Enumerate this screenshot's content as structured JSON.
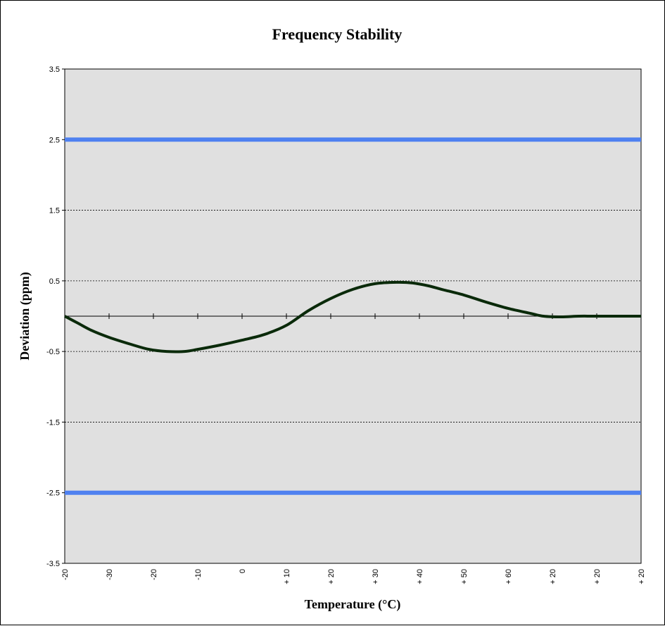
{
  "chart_data": {
    "type": "line",
    "title": "Frequency Stability",
    "xlabel": "Temperature (°C)",
    "ylabel": "Deviation (ppm)",
    "ylim": [
      -3.5,
      3.5
    ],
    "y_ticks": [
      "3.5",
      "2.5",
      "1.5",
      "0.5",
      "-0.5",
      "-1.5",
      "-2.5",
      "-3.5"
    ],
    "y_tick_values": [
      3.5,
      2.5,
      1.5,
      0.5,
      -0.5,
      -1.5,
      -2.5,
      -3.5
    ],
    "categories": [
      "-20",
      "-30",
      "-20",
      "-10",
      "0",
      "+ 10",
      "+ 20",
      "+ 30",
      "+ 40",
      "+ 50",
      "+ 60",
      "+ 20",
      "+ 20",
      "+ 20"
    ],
    "grid": true,
    "plot_background": "#e0e0e0",
    "limit_color": "#4f81f0",
    "curve_color": "#0a2a0a",
    "series": [
      {
        "x": [
          0,
          0.3,
          0.6,
          1.0,
          1.5,
          1.9,
          2.3,
          2.7,
          3.0,
          3.5,
          4.0,
          4.5,
          5.0,
          5.5,
          6.0,
          6.5,
          7.0,
          7.5,
          7.85,
          8.2,
          8.5,
          9.0,
          9.5,
          10.0,
          10.5,
          10.8,
          11.2,
          11.6,
          12.0,
          13.0
        ],
        "values": [
          0,
          -0.1,
          -0.2,
          -0.3,
          -0.4,
          -0.47,
          -0.5,
          -0.5,
          -0.47,
          -0.41,
          -0.34,
          -0.26,
          -0.13,
          0.08,
          0.25,
          0.38,
          0.46,
          0.48,
          0.47,
          0.43,
          0.38,
          0.3,
          0.2,
          0.11,
          0.04,
          0.0,
          -0.01,
          0.0,
          0.0,
          0.0
        ]
      },
      {
        "x": [
          0,
          13
        ],
        "values": [
          2.5,
          2.5
        ]
      },
      {
        "x": [
          0,
          13
        ],
        "values": [
          -2.5,
          -2.5
        ]
      }
    ]
  }
}
